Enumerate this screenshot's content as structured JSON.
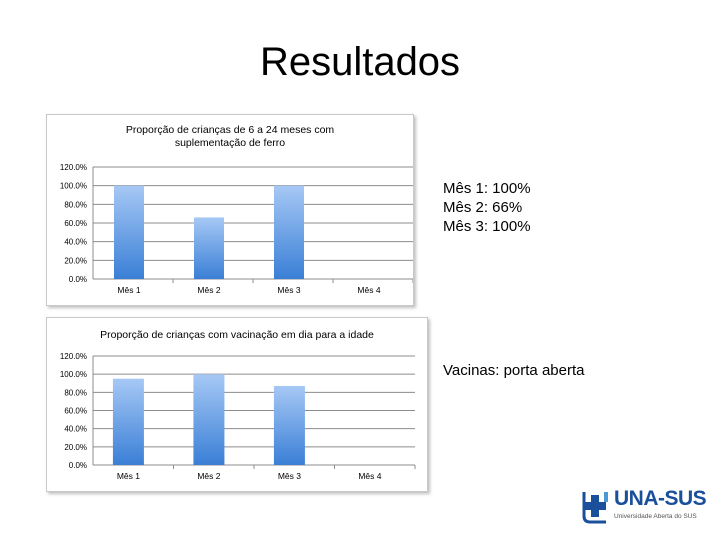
{
  "page": {
    "title": "Resultados",
    "note1": [
      "Mês 1: 100%",
      "Mês 2: 66%",
      "Mês 3: 100%"
    ],
    "note2": "Vacinas: porta aberta",
    "logo": {
      "text": "UNA-SUS",
      "subtitle": "Universidade Aberta do SUS",
      "color": "#1a4f9c"
    }
  },
  "chart_data": [
    {
      "type": "bar",
      "title": [
        "Proporção de crianças de 6 a 24 meses com",
        "suplementação de ferro"
      ],
      "categories": [
        "Mês 1",
        "Mês 2",
        "Mês 3",
        "Mês 4"
      ],
      "values": [
        100,
        66,
        100,
        null
      ],
      "yticks": [
        "0.0%",
        "20.0%",
        "40.0%",
        "60.0%",
        "80.0%",
        "100.0%",
        "120.0%"
      ],
      "ylim": [
        0,
        120
      ],
      "grid": true,
      "bar_color_top": "#a6c8f5",
      "bar_color_bottom": "#3a7fd6"
    },
    {
      "type": "bar",
      "title": "Proporção de crianças com vacinação em dia para a idade",
      "categories": [
        "Mês 1",
        "Mês 2",
        "Mês 3",
        "Mês 4"
      ],
      "values": [
        95,
        100,
        87,
        null
      ],
      "yticks": [
        "0.0%",
        "20.0%",
        "40.0%",
        "60.0%",
        "80.0%",
        "100.0%",
        "120.0%"
      ],
      "ylim": [
        0,
        120
      ],
      "grid": true,
      "bar_color_top": "#a6c8f5",
      "bar_color_bottom": "#3a7fd6"
    }
  ]
}
